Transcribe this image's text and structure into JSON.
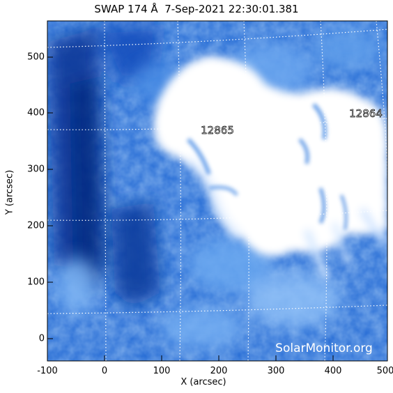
{
  "title": "SWAP 174 Å  7-Sep-2021 22:30:01.381",
  "x_axis": {
    "label": "X (arcsec)",
    "ticks": [
      "-100",
      "0",
      "100",
      "200",
      "300",
      "400",
      "500"
    ]
  },
  "y_axis": {
    "label": "Y (arcsec)",
    "ticks": [
      "500",
      "400",
      "300",
      "200",
      "100",
      "0"
    ]
  },
  "regions": [
    {
      "label": "12865"
    },
    {
      "label": "12864"
    }
  ],
  "watermark": "SolarMonitor.org",
  "colors": {
    "background_dark": "#0a3a9c",
    "background_mid": "#1c62cf",
    "background_light": "#5ea2ef",
    "bright": "#ffffff",
    "grid": "#ffffff"
  }
}
